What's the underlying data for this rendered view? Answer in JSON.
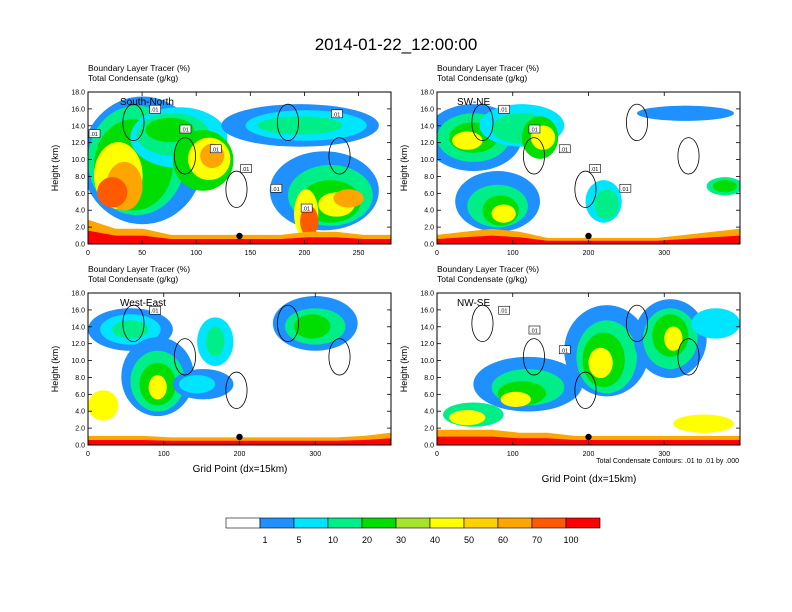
{
  "figure": {
    "title": "2014-01-22_12:00:00",
    "contour_note": "Total Condensate Contours: .01 to .01 by .000",
    "marker_color": "#000000"
  },
  "chart_data": [
    {
      "type": "heatmap",
      "panel": "top-left",
      "label": "South-North",
      "title_line1": "Boundary Layer Tracer    (%)",
      "title_line2": "Total Condensate    (g/kg)",
      "xlabel": "",
      "ylabel": "Height (km)",
      "xlim": [
        0,
        280
      ],
      "ylim": [
        0,
        18
      ],
      "xticks": [
        "0",
        "50",
        "100",
        "150",
        "200",
        "250"
      ],
      "xtick_values": [
        0,
        50,
        100,
        150,
        200,
        250
      ],
      "yticks": [
        "0.0",
        "2.0",
        "4.0",
        "6.0",
        "8.0",
        "10.0",
        "12.0",
        "14.0",
        "16.0",
        "18.0"
      ],
      "marker_x": 140,
      "contour_labels": [
        ".01",
        ".01",
        ".01",
        ".01",
        ".01",
        ".01",
        ".01",
        ".01"
      ]
    },
    {
      "type": "heatmap",
      "panel": "top-right",
      "label": "SW-NE",
      "title_line1": "Boundary Layer Tracer    (%)",
      "title_line2": "Total Condensate    (g/kg)",
      "xlabel": "",
      "ylabel": "Height (km)",
      "xlim": [
        0,
        400
      ],
      "ylim": [
        0,
        18
      ],
      "xticks": [
        "0",
        "100",
        "200",
        "300"
      ],
      "xtick_values": [
        0,
        100,
        200,
        300
      ],
      "yticks": [
        "0.0",
        "2.0",
        "4.0",
        "6.0",
        "8.0",
        "10.0",
        "12.0",
        "14.0",
        "16.0",
        "18.0"
      ],
      "marker_x": 200,
      "contour_labels": [
        ".01",
        ".01",
        ".01",
        ".01",
        ".01"
      ]
    },
    {
      "type": "heatmap",
      "panel": "bottom-left",
      "label": "West-East",
      "title_line1": "Boundary Layer Tracer    (%)",
      "title_line2": "Total Condensate    (g/kg)",
      "xlabel": "Grid Point (dx=15km)",
      "ylabel": "Height (km)",
      "xlim": [
        0,
        400
      ],
      "ylim": [
        0,
        18
      ],
      "xticks": [
        "0",
        "100",
        "200",
        "300"
      ],
      "xtick_values": [
        0,
        100,
        200,
        300
      ],
      "yticks": [
        "0.0",
        "2.0",
        "4.0",
        "6.0",
        "8.0",
        "10.0",
        "12.0",
        "14.0",
        "16.0",
        "18.0"
      ],
      "marker_x": 200,
      "contour_labels": [
        ".01"
      ]
    },
    {
      "type": "heatmap",
      "panel": "bottom-right",
      "label": "NW-SE",
      "title_line1": "Boundary Layer Tracer    (%)",
      "title_line2": "Total Condensate    (g/kg)",
      "xlabel": "Grid Point (dx=15km)",
      "ylabel": "Height (km)",
      "xlim": [
        0,
        400
      ],
      "ylim": [
        0,
        18
      ],
      "xticks": [
        "0",
        "100",
        "200",
        "300"
      ],
      "xtick_values": [
        0,
        100,
        200,
        300
      ],
      "yticks": [
        "0.0",
        "2.0",
        "4.0",
        "6.0",
        "8.0",
        "10.0",
        "12.0",
        "14.0",
        "16.0",
        "18.0"
      ],
      "marker_x": 200,
      "contour_labels": [
        ".01",
        ".01",
        ".01"
      ]
    }
  ],
  "colorbar": {
    "colors": [
      "#ffffff",
      "#1e90ff",
      "#00e5ff",
      "#00ee88",
      "#00dd00",
      "#a6e32d",
      "#ffff00",
      "#ffd000",
      "#ffa500",
      "#ff5a00",
      "#ff0000"
    ],
    "labels": [
      "1",
      "5",
      "10",
      "20",
      "30",
      "40",
      "50",
      "60",
      "70",
      "100"
    ]
  },
  "palette": {
    "white": "#ffffff",
    "blue": "#1e90ff",
    "cyan": "#00e5ff",
    "teal": "#00ee88",
    "green": "#00dd00",
    "lime": "#a6e32d",
    "yellow": "#ffff00",
    "gold": "#ffd000",
    "orange": "#ffa500",
    "redorange": "#ff5a00",
    "red": "#ff0000"
  }
}
